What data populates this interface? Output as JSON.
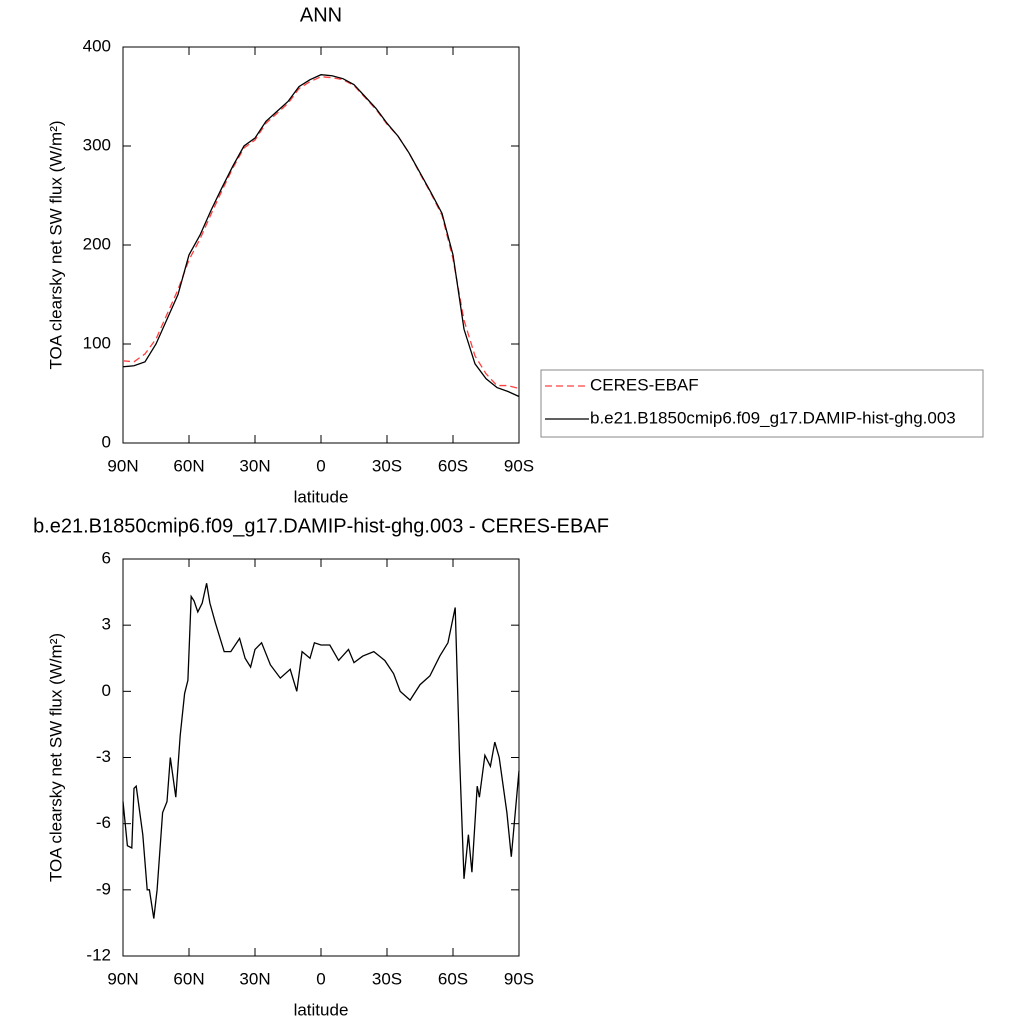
{
  "chart_data": [
    {
      "type": "line",
      "title": "ANN",
      "xlabel": "latitude",
      "ylabel": "TOA clearsky net SW flux (W/m²)",
      "x": [
        90,
        85,
        80,
        75,
        70,
        65,
        60,
        55,
        50,
        45,
        40,
        35,
        30,
        25,
        20,
        15,
        10,
        5,
        0,
        -5,
        -10,
        -15,
        -20,
        -25,
        -30,
        -35,
        -40,
        -45,
        -50,
        -55,
        -60,
        -65,
        -70,
        -75,
        -80,
        -85,
        -90
      ],
      "series": [
        {
          "name": "CERES-EBAF",
          "color": "#ff4040",
          "dash": "dashed",
          "values": [
            83,
            82,
            90,
            105,
            130,
            155,
            185,
            206,
            231,
            255,
            278,
            298,
            306,
            323,
            333,
            343,
            358,
            365,
            370,
            369,
            367,
            361,
            349,
            337,
            322,
            310,
            293,
            272,
            252,
            230,
            186,
            124,
            88,
            70,
            58,
            58,
            55
          ]
        },
        {
          "name": "b.e21.B1850cmip6.f09_g17.DAMIP-hist-ghg.003",
          "color": "#000000",
          "dash": "solid",
          "values": [
            77,
            78,
            82,
            100,
            125,
            150,
            190,
            210,
            235,
            258,
            280,
            300,
            308,
            325,
            335,
            345,
            360,
            367,
            372,
            371,
            368,
            362,
            350,
            338,
            323,
            310,
            293,
            273,
            253,
            232,
            190,
            115,
            80,
            65,
            56,
            52,
            47
          ]
        }
      ],
      "xlim": [
        90,
        -90
      ],
      "xticks": [
        {
          "value": 90,
          "label": "90N"
        },
        {
          "value": 60,
          "label": "60N"
        },
        {
          "value": 30,
          "label": "30N"
        },
        0,
        {
          "value": -30,
          "label": "30S"
        },
        {
          "value": -60,
          "label": "60S"
        },
        {
          "value": -90,
          "label": "90S"
        }
      ],
      "ylim": [
        0,
        400
      ],
      "yticks": [
        0,
        100,
        200,
        300,
        400
      ],
      "legend": "right"
    },
    {
      "type": "line",
      "title": "b.e21.B1850cmip6.f09_g17.DAMIP-hist-ghg.003 - CERES-EBAF",
      "xlabel": "latitude",
      "ylabel": "TOA clearsky net SW flux (W/m²)",
      "x": [
        90,
        88,
        86,
        85,
        84,
        81,
        79,
        78,
        76,
        74.5,
        72,
        70,
        68.5,
        66,
        64,
        62,
        60.5,
        59,
        57.7,
        56,
        54,
        52,
        50.5,
        48,
        44,
        41,
        37,
        34.5,
        32,
        30,
        27,
        23,
        18.5,
        14,
        11,
        8.6,
        5,
        3,
        0,
        -4,
        -8,
        -12.5,
        -15,
        -19,
        -24,
        -29,
        -33,
        -36,
        -40.5,
        -45,
        -49.5,
        -54,
        -57.7,
        -61,
        -63,
        -65,
        -67,
        -68.6,
        -71,
        -72,
        -74.5,
        -77,
        -79,
        -81,
        -84.5,
        -86.5,
        -90
      ],
      "color": "#000000",
      "values": [
        -5,
        -7,
        -7.1,
        -4.4,
        -4.3,
        -6.5,
        -9,
        -9,
        -10.3,
        -9,
        -5.5,
        -5,
        -3,
        -4.8,
        -2,
        -0.1,
        0.5,
        4.3,
        4.1,
        3.6,
        4,
        4.9,
        4,
        3.1,
        1.8,
        1.8,
        2.4,
        1.5,
        1.1,
        1.9,
        2.2,
        1.2,
        0.6,
        1,
        0,
        1.8,
        1.5,
        2.2,
        2.1,
        2.1,
        1.4,
        1.9,
        1.3,
        1.6,
        1.8,
        1.4,
        0.8,
        0,
        -0.4,
        0.3,
        0.7,
        1.6,
        2.2,
        3.8,
        -3,
        -8.5,
        -6.5,
        -8.2,
        -4.3,
        -4.8,
        -2.9,
        -3.4,
        -2.3,
        -3,
        -5.5,
        -7.5,
        -3.6
      ],
      "xlim": [
        90,
        -90
      ],
      "xticks": [
        {
          "value": 90,
          "label": "90N"
        },
        {
          "value": 60,
          "label": "60N"
        },
        {
          "value": 30,
          "label": "30N"
        },
        0,
        {
          "value": -30,
          "label": "30S"
        },
        {
          "value": -60,
          "label": "60S"
        },
        {
          "value": -90,
          "label": "90S"
        }
      ],
      "ylim": [
        -12,
        6
      ],
      "yticks": [
        -12,
        -9,
        -6,
        -3,
        0,
        3,
        6
      ]
    }
  ]
}
